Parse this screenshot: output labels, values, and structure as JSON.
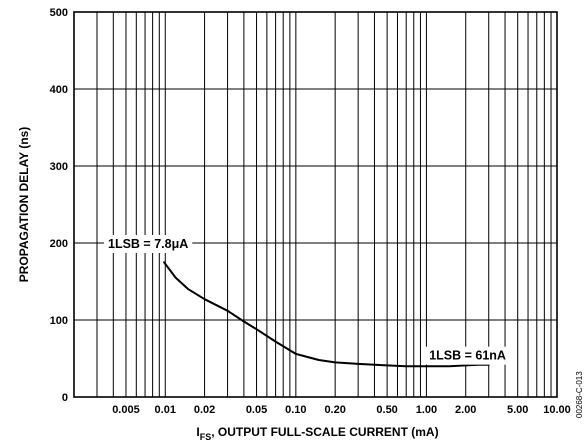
{
  "chart_data": {
    "type": "line",
    "xscale": "log",
    "xlabel_main": "I",
    "xlabel_sub": "FS",
    "xlabel_rest": ", OUTPUT FULL-SCALE CURRENT (mA)",
    "ylabel": "PROPAGATION DELAY (ns)",
    "xlim": [
      0.002,
      10
    ],
    "ylim": [
      0,
      500
    ],
    "grid": true,
    "x_ticks": [
      0.005,
      0.01,
      0.02,
      0.05,
      0.1,
      0.2,
      0.5,
      1,
      2,
      5,
      10
    ],
    "x_tick_labels": [
      "0.005",
      "0.01",
      "0.02",
      "0.05",
      "0.10",
      "0.20",
      "0.50",
      "1.00",
      "2.00",
      "5.00",
      "10.00"
    ],
    "y_ticks": [
      0,
      100,
      200,
      300,
      400,
      500
    ],
    "y_tick_labels": [
      "0",
      "100",
      "200",
      "300",
      "400",
      "500"
    ],
    "series": [
      {
        "x": [
          0.0098,
          0.012,
          0.015,
          0.02,
          0.03,
          0.04,
          0.05,
          0.07,
          0.1,
          0.15,
          0.2,
          0.3,
          0.5,
          0.7,
          1.0,
          1.5,
          2.0,
          2.5,
          3.0
        ],
        "y": [
          175,
          155,
          140,
          127,
          112,
          98,
          88,
          72,
          56,
          48,
          45,
          43,
          41,
          40,
          40,
          40,
          41,
          42,
          42
        ]
      }
    ],
    "annotations": [
      {
        "text": "1LSB = 7.8μA",
        "x": 0.0098,
        "y": 200
      },
      {
        "text": "1LSB = 61nA",
        "x": 2.2,
        "y": 55
      }
    ],
    "figure_code": "00268-C-013"
  }
}
